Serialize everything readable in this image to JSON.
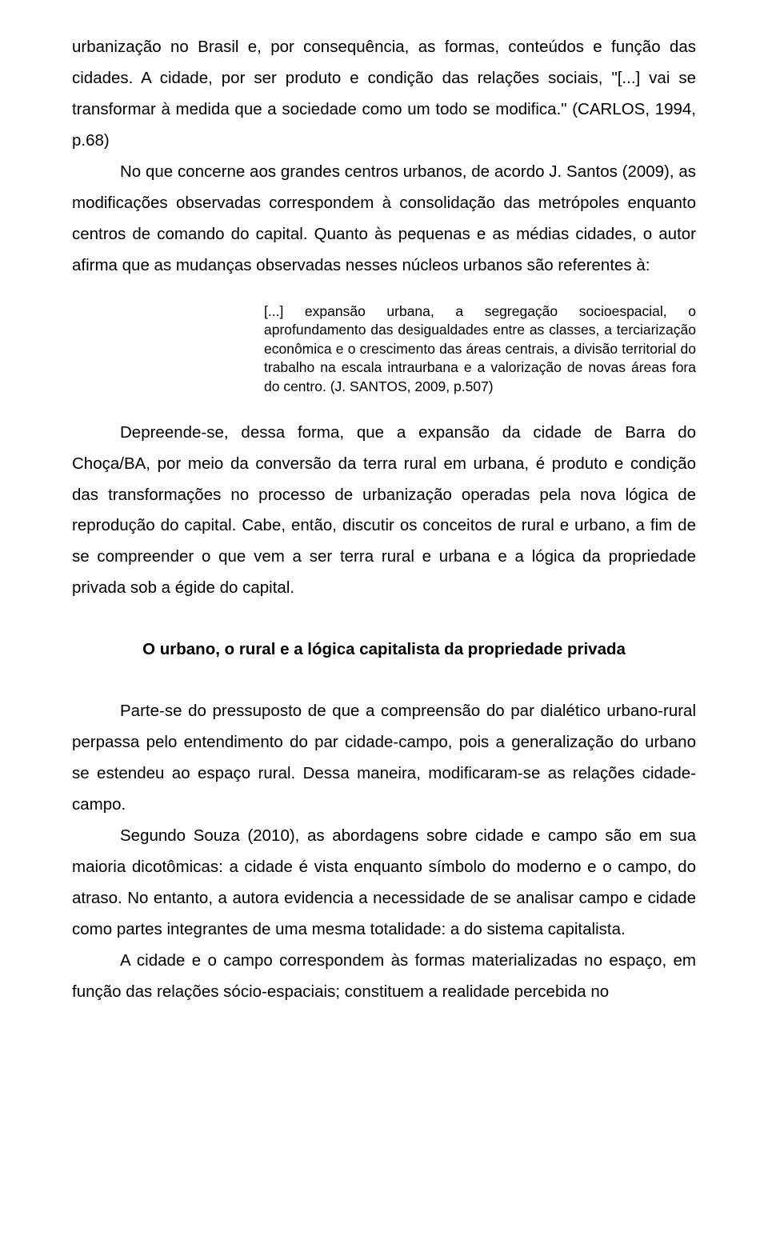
{
  "colors": {
    "text": "#000000",
    "background": "#ffffff"
  },
  "typography": {
    "body_font_family": "Arial",
    "body_font_size_pt": 15,
    "body_line_height": 1.9,
    "quote_font_size_pt": 13,
    "quote_line_height": 1.35,
    "heading_weight": "bold"
  },
  "p1_frag": "urbanização no Brasil e, por consequência, as formas, conteúdos e função das cidades. A cidade, por ser produto e condição das relações sociais, \"[...] vai se transformar à medida que a sociedade como um todo se modifica.\" (CARLOS, 1994, p.68)",
  "p2": "No que concerne aos grandes centros urbanos, de acordo J. Santos (2009), as modificações observadas correspondem à consolidação das metrópoles enquanto centros de comando do capital. Quanto às pequenas e as médias cidades, o autor afirma que as mudanças observadas nesses núcleos urbanos são referentes à:",
  "quote1": "[...] expansão urbana, a segregação socioespacial, o aprofundamento das desigualdades entre as classes, a terciarização econômica e o crescimento das áreas centrais, a divisão territorial do trabalho na escala intraurbana e a valorização de novas áreas fora do centro. (J. SANTOS, 2009, p.507)",
  "p3": "Depreende-se, dessa forma, que a expansão da cidade de Barra do Choça/BA, por meio da conversão da terra rural em urbana, é produto e condição das transformações no processo de urbanização operadas pela nova lógica de reprodução do capital. Cabe, então, discutir os conceitos de rural e urbano, a fim de se compreender o que vem a ser terra rural e urbana e a lógica da propriedade privada sob a égide do capital.",
  "heading1": "O urbano, o rural e a lógica capitalista da propriedade privada",
  "p4": "Parte-se do pressuposto de que a compreensão do par dialético urbano-rural perpassa pelo entendimento do par cidade-campo, pois a generalização do urbano se estendeu ao espaço rural. Dessa maneira, modificaram-se as relações cidade-campo.",
  "p5": "Segundo Souza (2010), as abordagens sobre cidade e campo são em sua maioria dicotômicas: a cidade é vista enquanto símbolo do moderno e o campo, do atraso. No entanto, a autora evidencia a necessidade de se analisar campo e cidade como partes integrantes de uma mesma totalidade: a do sistema capitalista.",
  "p6_frag": "A cidade e o campo correspondem às formas materializadas no espaço, em função das relações sócio-espaciais; constituem a realidade percebida no"
}
